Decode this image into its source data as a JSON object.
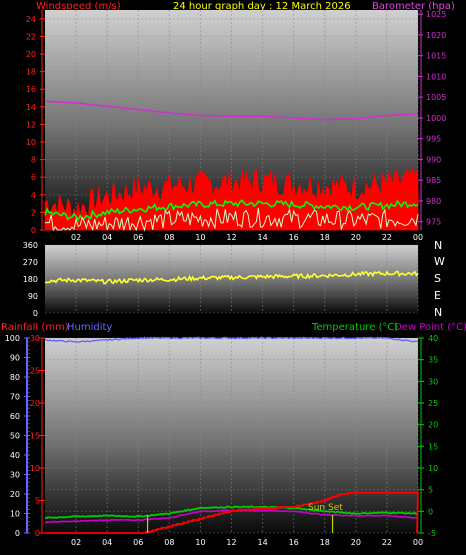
{
  "header": {
    "windspeed_label": "Windspeed (m/s)",
    "title": "24 hour graph day : 12 March 2026",
    "barometer_label": "Barometer (hpa)"
  },
  "labels": {
    "rainfall": "Rainfall (mm)",
    "humidity": "Humidity",
    "temperature": "Temperature (°C)",
    "dewpoint": "Dew Point (°C)",
    "sunset": "Sun Set",
    "compass": [
      "N",
      "W",
      "S",
      "E",
      "N"
    ]
  },
  "colors": {
    "wind": "#ff0000",
    "gust": "#ff0000",
    "wind_avg": "#00ff00",
    "wind_low": "#ccffcc",
    "barometer": "#cc33cc",
    "direction": "#ffff33",
    "rain": "#ff0000",
    "humidity": "#6666ff",
    "temperature": "#00cc00",
    "dewpoint": "#cc00cc",
    "sunrise_marker": "#cccc00"
  },
  "chart_data": [
    {
      "type": "line",
      "name": "wind-and-barometer",
      "x_ticks": [
        "02",
        "04",
        "06",
        "08",
        "10",
        "12",
        "14",
        "16",
        "18",
        "20",
        "22",
        "00"
      ],
      "ylim": [
        0,
        25
      ],
      "y_ticks": [
        "0",
        "2",
        "4",
        "6",
        "8",
        "10",
        "12",
        "14",
        "16",
        "18",
        "20",
        "22",
        "24"
      ],
      "y2lim": [
        973,
        1026
      ],
      "y2_ticks": [
        "975",
        "980",
        "985",
        "990",
        "995",
        "1000",
        "1005",
        "1010",
        "1015",
        "1020",
        "1025"
      ],
      "series": [
        {
          "key": "gust",
          "hours": [
            0,
            2,
            4,
            6,
            8,
            10,
            12,
            14,
            16,
            18,
            20,
            22,
            24
          ],
          "values": [
            3.2,
            2.4,
            3.8,
            4.6,
            5.0,
            5.2,
            5.4,
            5.6,
            5.2,
            5.0,
            4.8,
            5.2,
            5.8
          ]
        },
        {
          "key": "wind_avg",
          "hours": [
            0,
            2,
            4,
            6,
            8,
            10,
            12,
            14,
            16,
            18,
            20,
            22,
            24
          ],
          "values": [
            2.0,
            1.4,
            2.0,
            2.4,
            2.7,
            2.9,
            3.0,
            3.0,
            2.9,
            2.7,
            2.6,
            2.8,
            3.1
          ]
        },
        {
          "key": "wind_low",
          "hours": [
            0,
            2,
            4,
            6,
            8,
            10,
            12,
            14,
            16,
            18,
            20,
            22,
            24
          ],
          "values": [
            0.8,
            0.5,
            0.7,
            1.0,
            1.2,
            1.3,
            1.4,
            1.4,
            1.3,
            1.2,
            1.1,
            1.2,
            1.4
          ]
        },
        {
          "key": "barometer",
          "axis": "y2",
          "hours": [
            0,
            2,
            4,
            6,
            8,
            10,
            12,
            14,
            16,
            18,
            20,
            22,
            24
          ],
          "values": [
            1004.0,
            1003.6,
            1002.8,
            1002.0,
            1001.2,
            1000.6,
            1000.4,
            1000.4,
            1000.0,
            999.6,
            999.8,
            1000.6,
            1001.0
          ]
        }
      ]
    },
    {
      "type": "line",
      "name": "wind-direction",
      "ylim": [
        0,
        360
      ],
      "y_ticks": [
        "0",
        "90",
        "180",
        "270",
        "360"
      ],
      "series": [
        {
          "key": "direction",
          "hours": [
            0,
            2,
            4,
            6,
            8,
            10,
            12,
            14,
            16,
            18,
            20,
            22,
            24
          ],
          "values": [
            170,
            175,
            165,
            175,
            178,
            185,
            188,
            192,
            195,
            198,
            205,
            210,
            208
          ]
        }
      ]
    },
    {
      "type": "line",
      "name": "rain-humidity-temperature",
      "x_ticks": [
        "02",
        "04",
        "06",
        "08",
        "10",
        "12",
        "14",
        "16",
        "18",
        "20",
        "22",
        "00"
      ],
      "ylim": [
        0,
        30
      ],
      "y_ticks": [
        "0",
        "5",
        "10",
        "15",
        "20",
        "25",
        "30"
      ],
      "y_left_humidity_ticks": [
        "0",
        "10",
        "20",
        "30",
        "40",
        "50",
        "60",
        "70",
        "80",
        "90",
        "100"
      ],
      "y2lim": [
        -5,
        40
      ],
      "y2_ticks": [
        "-5",
        "0",
        "5",
        "10",
        "15",
        "20",
        "25",
        "30",
        "35",
        "40"
      ],
      "series": [
        {
          "key": "humidity",
          "axis": "humidity",
          "hours": [
            0,
            2,
            4,
            6,
            8,
            10,
            12,
            14,
            16,
            18,
            20,
            22,
            24
          ],
          "values": [
            99,
            98,
            99,
            100,
            100,
            100,
            100,
            100,
            100,
            100,
            100,
            100,
            98
          ]
        },
        {
          "key": "temperature",
          "axis": "y2",
          "hours": [
            0,
            2,
            4,
            6,
            8,
            10,
            12,
            14,
            16,
            18,
            20,
            22,
            24
          ],
          "values": [
            -1.5,
            -1.2,
            -1.0,
            -1.2,
            -0.5,
            0.8,
            1.0,
            1.0,
            0.8,
            0.0,
            -0.5,
            -0.3,
            -0.5
          ]
        },
        {
          "key": "dewpoint",
          "axis": "y2",
          "hours": [
            0,
            2,
            4,
            6,
            8,
            10,
            12,
            14,
            16,
            18,
            20,
            22,
            24
          ],
          "values": [
            -2.5,
            -2.3,
            -2.0,
            -2.0,
            -1.5,
            0.0,
            0.2,
            0.2,
            0.0,
            -0.8,
            -1.0,
            -1.0,
            -1.5
          ]
        },
        {
          "key": "rain",
          "hours": [
            0,
            2,
            4,
            6,
            6.5,
            8,
            10,
            12,
            14,
            16,
            18,
            19,
            20,
            22,
            23.9
          ],
          "values": [
            0,
            0,
            0,
            0,
            0.1,
            1.0,
            2.2,
            3.4,
            3.8,
            4.0,
            5.0,
            6.0,
            6.2,
            6.2,
            6.2
          ]
        }
      ],
      "sunrise_hour": 6.6,
      "sunset_hour": 18.5
    }
  ]
}
